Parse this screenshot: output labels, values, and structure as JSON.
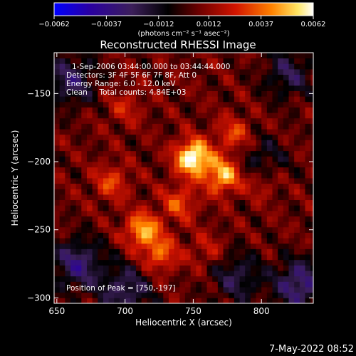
{
  "chart_data": {
    "type": "heatmap",
    "title": "Reconstructed RHESSI Image",
    "xlabel": "Heliocentric X (arcsec)",
    "ylabel": "Heliocentric Y (arcsec)",
    "xlim": [
      648,
      838
    ],
    "ylim": [
      -304,
      -120
    ],
    "x_ticks": [
      {
        "value": 650,
        "label": "650"
      },
      {
        "value": 700,
        "label": "700"
      },
      {
        "value": 750,
        "label": "750"
      },
      {
        "value": 800,
        "label": "800"
      }
    ],
    "y_ticks": [
      {
        "value": -150,
        "label": "−150"
      },
      {
        "value": -200,
        "label": "−200"
      },
      {
        "value": -250,
        "label": "−250"
      },
      {
        "value": -300,
        "label": "−300"
      }
    ],
    "colorbar": {
      "min": -0.0062,
      "max": 0.0062,
      "tick_values": [
        -0.0062,
        -0.0037,
        -0.0012,
        0.0012,
        0.0037,
        0.0062
      ],
      "tick_labels": [
        "−0.0062",
        "−0.0037",
        "−0.0012",
        "0.0012",
        "0.0037",
        "0.0062"
      ],
      "unit_label": "(photons cm⁻² s⁻¹ asec⁻²)",
      "colors": [
        "#0000ff",
        "#2a00a0",
        "#3c1f5a",
        "#000000",
        "#6e0000",
        "#d21400",
        "#ff8200",
        "#ffe664",
        "#ffffff"
      ]
    },
    "annotations": [
      "1-Sep-2006 03:44:00.000 to 03:44:44.000",
      "Detectors: 3F 4F 5F 6F 7F 8F, Att 0",
      "Energy Range: 6.0 - 12.0 keV",
      "Clean     Total counts: 4.84E+03"
    ],
    "peak_label": "Position of Peak = [750,-197]",
    "peak": {
      "x": 750,
      "y": -197,
      "value": 0.0062
    },
    "sources": [
      {
        "x": 750,
        "y": -197,
        "value": 0.0062
      },
      {
        "x": 772,
        "y": -210,
        "value": 0.0045
      },
      {
        "x": 713,
        "y": -250,
        "value": 0.0042
      },
      {
        "x": 726,
        "y": -268,
        "value": 0.003
      },
      {
        "x": 780,
        "y": -180,
        "value": 0.0025
      },
      {
        "x": 690,
        "y": -215,
        "value": 0.0024
      },
      {
        "x": 740,
        "y": -230,
        "value": 0.0026
      },
      {
        "x": 800,
        "y": -215,
        "value": 0.0018
      },
      {
        "x": 760,
        "y": -265,
        "value": 0.0015
      },
      {
        "x": 700,
        "y": -160,
        "value": 0.0016
      }
    ],
    "negative_regions": [
      {
        "x": 660,
        "y": -140,
        "value": -0.003
      },
      {
        "x": 665,
        "y": -275,
        "value": -0.0035
      },
      {
        "x": 820,
        "y": -135,
        "value": -0.0025
      },
      {
        "x": 828,
        "y": -290,
        "value": -0.0038
      },
      {
        "x": 800,
        "y": -200,
        "value": -0.002
      },
      {
        "x": 700,
        "y": -295,
        "value": -0.003
      },
      {
        "x": 782,
        "y": -285,
        "value": -0.0025
      }
    ]
  },
  "footer": {
    "timestamp": "7-May-2022 08:52"
  }
}
